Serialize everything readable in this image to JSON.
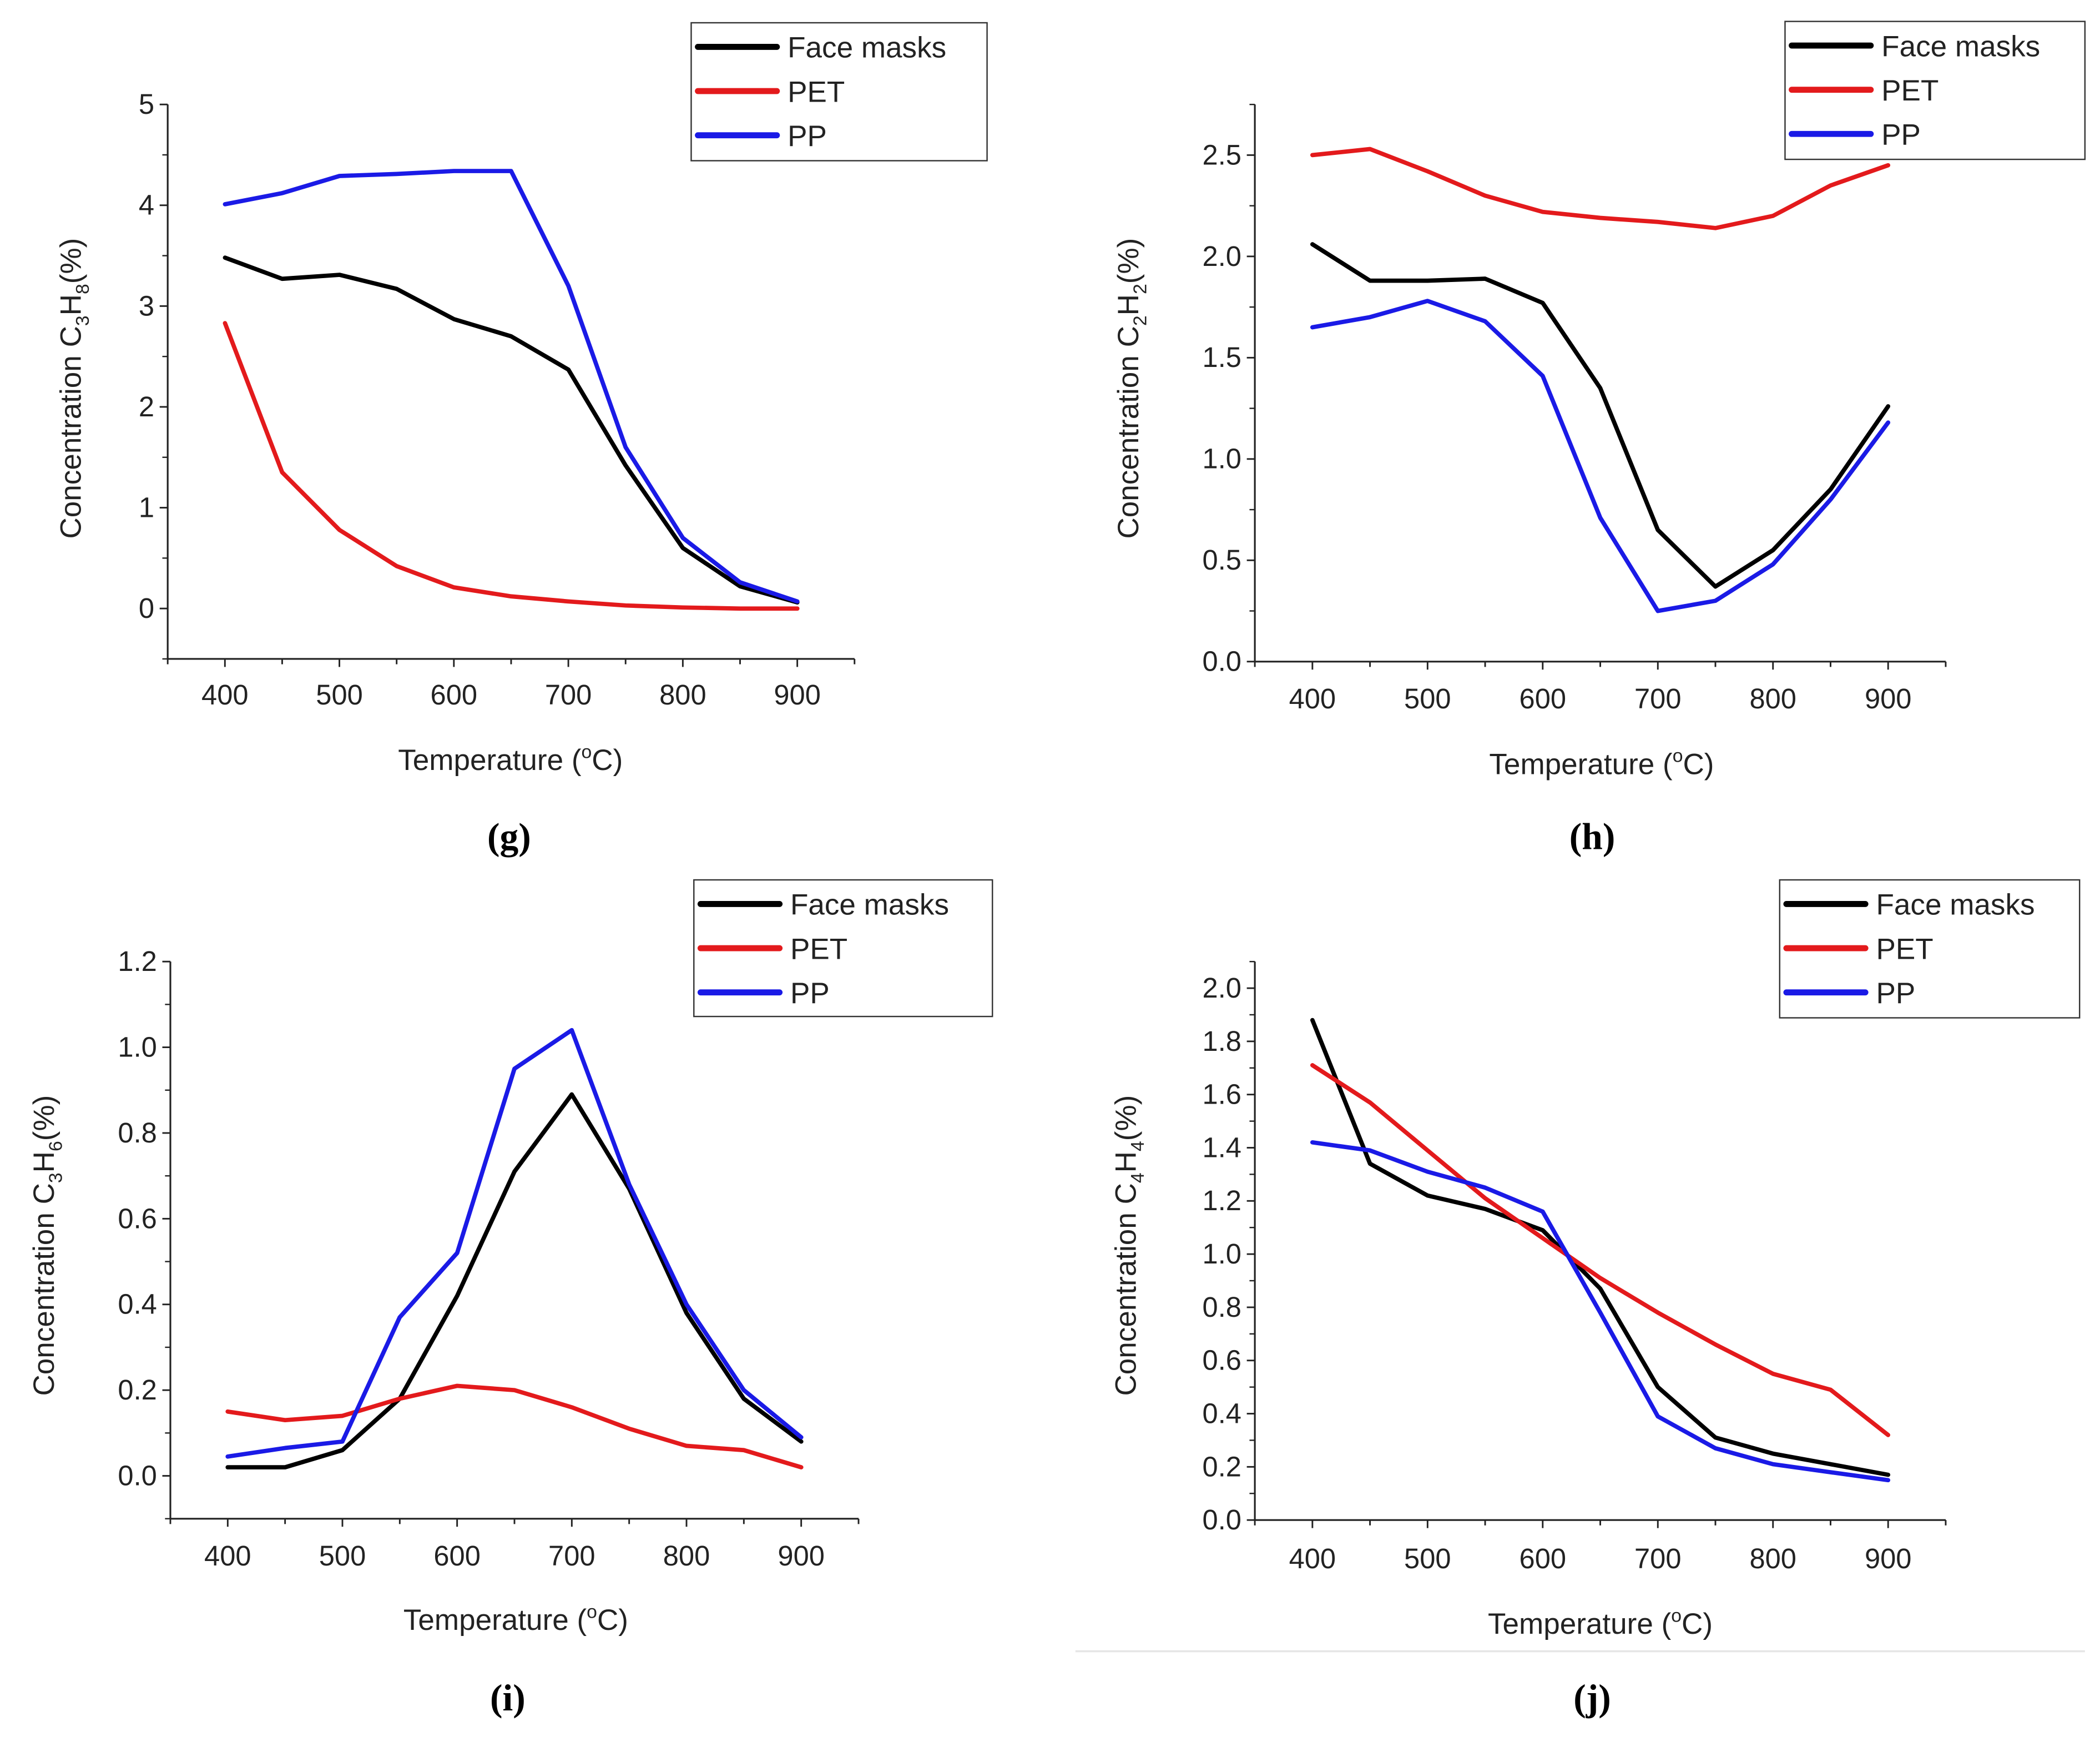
{
  "chart_data": [
    {
      "type": "line",
      "panel_label": "(g)",
      "xlabel_parts": [
        {
          "t": "Temperature ("
        },
        {
          "t": "o",
          "sup": true
        },
        {
          "t": "C)"
        }
      ],
      "ylabel_parts": [
        {
          "t": "Concentration C"
        },
        {
          "t": "3",
          "sub": true
        },
        {
          "t": "H"
        },
        {
          "t": "8",
          "sub": true
        },
        {
          "t": "(%)"
        }
      ],
      "xlim": [
        350,
        950
      ],
      "ylim": [
        -0.5,
        5
      ],
      "xticks": [
        400,
        500,
        600,
        700,
        800,
        900
      ],
      "yticks": [
        0,
        1,
        2,
        3,
        4,
        5
      ],
      "ytick_labels": [
        "0",
        "1",
        "2",
        "3",
        "4",
        "5"
      ],
      "legend_position": "top-right",
      "x": [
        400,
        450,
        500,
        550,
        600,
        650,
        700,
        750,
        800,
        850,
        900
      ],
      "series": [
        {
          "name": "Face masks",
          "color": "#000000",
          "values": [
            3.48,
            3.27,
            3.31,
            3.17,
            2.87,
            2.7,
            2.37,
            1.42,
            0.6,
            0.22,
            0.06
          ]
        },
        {
          "name": "PET",
          "color": "#e31a1c",
          "values": [
            2.83,
            1.35,
            0.78,
            0.42,
            0.21,
            0.12,
            0.07,
            0.03,
            0.01,
            0.0,
            0.0
          ]
        },
        {
          "name": "PP",
          "color": "#1a1ae6",
          "values": [
            4.01,
            4.12,
            4.29,
            4.31,
            4.34,
            4.34,
            3.2,
            1.6,
            0.7,
            0.26,
            0.07
          ]
        }
      ]
    },
    {
      "type": "line",
      "panel_label": "(h)",
      "xlabel_parts": [
        {
          "t": "Temperature ("
        },
        {
          "t": "o",
          "sup": true
        },
        {
          "t": "C)"
        }
      ],
      "ylabel_parts": [
        {
          "t": "Concentration C"
        },
        {
          "t": "2",
          "sub": true
        },
        {
          "t": "H"
        },
        {
          "t": "2",
          "sub": true
        },
        {
          "t": "(%)"
        }
      ],
      "xlim": [
        350,
        950
      ],
      "ylim": [
        0,
        2.75
      ],
      "xticks": [
        400,
        500,
        600,
        700,
        800,
        900
      ],
      "yticks": [
        0,
        0.5,
        1,
        1.5,
        2,
        2.5
      ],
      "ytick_labels": [
        "0.0",
        "0.5",
        "1.0",
        "1.5",
        "2.0",
        "2.5"
      ],
      "legend_position": "top-right",
      "x": [
        400,
        450,
        500,
        550,
        600,
        650,
        700,
        750,
        800,
        850,
        900
      ],
      "series": [
        {
          "name": "Face masks",
          "color": "#000000",
          "values": [
            2.06,
            1.88,
            1.88,
            1.89,
            1.77,
            1.35,
            0.65,
            0.37,
            0.55,
            0.85,
            1.26
          ]
        },
        {
          "name": "PET",
          "color": "#e31a1c",
          "values": [
            2.5,
            2.53,
            2.42,
            2.3,
            2.22,
            2.19,
            2.17,
            2.14,
            2.2,
            2.35,
            2.45
          ]
        },
        {
          "name": "PP",
          "color": "#1a1ae6",
          "values": [
            1.65,
            1.7,
            1.78,
            1.68,
            1.41,
            0.71,
            0.25,
            0.3,
            0.48,
            0.8,
            1.18
          ]
        }
      ]
    },
    {
      "type": "line",
      "panel_label": "(i)",
      "xlabel_parts": [
        {
          "t": "Temperature ("
        },
        {
          "t": "o",
          "sup": true
        },
        {
          "t": "C)"
        }
      ],
      "ylabel_parts": [
        {
          "t": "Concentration C"
        },
        {
          "t": "3",
          "sub": true
        },
        {
          "t": "H"
        },
        {
          "t": "6",
          "sub": true
        },
        {
          "t": "(%)"
        }
      ],
      "xlim": [
        350,
        950
      ],
      "ylim": [
        -0.1,
        1.2
      ],
      "xticks": [
        400,
        500,
        600,
        700,
        800,
        900
      ],
      "yticks": [
        0,
        0.2,
        0.4,
        0.6,
        0.8,
        1.0,
        1.2
      ],
      "ytick_labels": [
        "0.0",
        "0.2",
        "0.4",
        "0.6",
        "0.8",
        "1.0",
        "1.2"
      ],
      "legend_position": "top-right",
      "x": [
        400,
        450,
        500,
        550,
        600,
        650,
        700,
        750,
        800,
        850,
        900
      ],
      "series": [
        {
          "name": "Face masks",
          "color": "#000000",
          "values": [
            0.02,
            0.02,
            0.06,
            0.18,
            0.42,
            0.71,
            0.89,
            0.67,
            0.38,
            0.18,
            0.08
          ]
        },
        {
          "name": "PET",
          "color": "#e31a1c",
          "values": [
            0.15,
            0.13,
            0.14,
            0.18,
            0.21,
            0.2,
            0.16,
            0.11,
            0.07,
            0.06,
            0.02
          ]
        },
        {
          "name": "PP",
          "color": "#1a1ae6",
          "values": [
            0.045,
            0.065,
            0.08,
            0.37,
            0.52,
            0.95,
            1.04,
            0.68,
            0.4,
            0.2,
            0.09
          ]
        }
      ]
    },
    {
      "type": "line",
      "panel_label": "(j)",
      "xlabel_parts": [
        {
          "t": "Temperature ("
        },
        {
          "t": "o",
          "sup": true
        },
        {
          "t": "C)"
        }
      ],
      "ylabel_parts": [
        {
          "t": "Concentration C"
        },
        {
          "t": "4",
          "sub": true
        },
        {
          "t": "H"
        },
        {
          "t": "4",
          "sub": true
        },
        {
          "t": "(%)"
        }
      ],
      "xlim": [
        350,
        950
      ],
      "ylim": [
        0,
        2.1
      ],
      "xticks": [
        400,
        500,
        600,
        700,
        800,
        900
      ],
      "yticks": [
        0,
        0.2,
        0.4,
        0.6,
        0.8,
        1.0,
        1.2,
        1.4,
        1.6,
        1.8,
        2.0
      ],
      "ytick_labels": [
        "0.0",
        "0.2",
        "0.4",
        "0.6",
        "0.8",
        "1.0",
        "1.2",
        "1.4",
        "1.6",
        "1.8",
        "2.0"
      ],
      "legend_position": "top-right",
      "x": [
        400,
        450,
        500,
        550,
        600,
        650,
        700,
        750,
        800,
        850,
        900
      ],
      "series": [
        {
          "name": "Face masks",
          "color": "#000000",
          "values": [
            1.88,
            1.34,
            1.22,
            1.17,
            1.09,
            0.87,
            0.5,
            0.31,
            0.25,
            0.21,
            0.17
          ]
        },
        {
          "name": "PET",
          "color": "#e31a1c",
          "values": [
            1.71,
            1.57,
            1.39,
            1.21,
            1.06,
            0.91,
            0.78,
            0.66,
            0.55,
            0.49,
            0.32
          ]
        },
        {
          "name": "PP",
          "color": "#1a1ae6",
          "values": [
            1.42,
            1.39,
            1.31,
            1.25,
            1.16,
            0.78,
            0.39,
            0.27,
            0.21,
            0.18,
            0.15
          ]
        }
      ]
    }
  ]
}
